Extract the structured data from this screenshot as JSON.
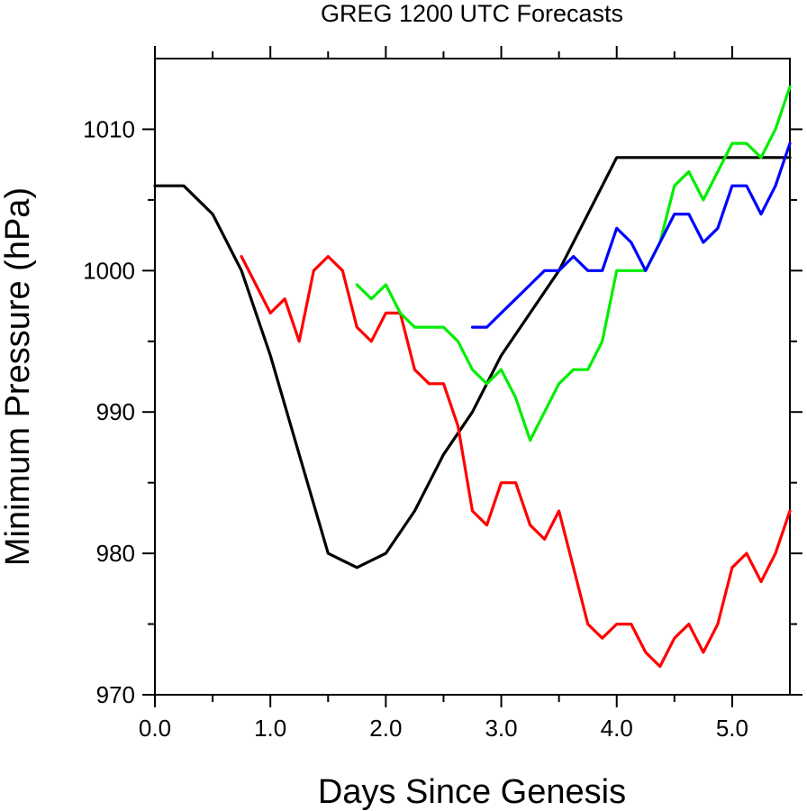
{
  "chart_data": {
    "type": "line",
    "title": "GREG 1200 UTC Forecasts",
    "xlabel": "Days Since Genesis",
    "ylabel": "Minimum Pressure (hPa)",
    "xlim": [
      0,
      5.5
    ],
    "ylim": [
      970,
      1015
    ],
    "xticks": [
      "0.0",
      "1.0",
      "2.0",
      "3.0",
      "4.0",
      "5.0"
    ],
    "yticks": [
      "970",
      "980",
      "990",
      "1000",
      "1010"
    ],
    "grid": false,
    "legend": "none",
    "series": [
      {
        "color": "#000000",
        "x": [
          0,
          0.25,
          0.5,
          0.75,
          1.0,
          1.25,
          1.5,
          1.75,
          2.0,
          2.25,
          2.5,
          2.75,
          3.0,
          3.25,
          3.5,
          3.75,
          4.0,
          4.25,
          4.5,
          4.75,
          5.0,
          5.25,
          5.5
        ],
        "y": [
          1006,
          1006,
          1004,
          1000,
          994,
          987,
          980,
          979,
          980,
          983,
          987,
          990,
          994,
          997,
          1000,
          1004,
          1008,
          1008,
          1008,
          1008,
          1008,
          1008,
          1008
        ]
      },
      {
        "color": "#ff0000",
        "x": [
          0.75,
          0.875,
          1.0,
          1.125,
          1.25,
          1.375,
          1.5,
          1.625,
          1.75,
          1.875,
          2.0,
          2.125,
          2.25,
          2.375,
          2.5,
          2.625,
          2.75,
          2.875,
          3.0,
          3.125,
          3.25,
          3.375,
          3.5,
          3.625,
          3.75,
          3.875,
          4.0,
          4.125,
          4.25,
          4.375,
          4.5,
          4.625,
          4.75,
          4.875,
          5.0,
          5.125,
          5.25,
          5.375,
          5.5
        ],
        "y": [
          1001,
          999,
          997,
          998,
          995,
          1000,
          1001,
          1000,
          996,
          995,
          997,
          997,
          993,
          992,
          992,
          989,
          983,
          982,
          985,
          985,
          982,
          981,
          983,
          979,
          975,
          974,
          975,
          975,
          973,
          972,
          974,
          975,
          973,
          975,
          979,
          980,
          978,
          980,
          983
        ]
      },
      {
        "color": "#00ee00",
        "x": [
          1.75,
          1.875,
          2.0,
          2.125,
          2.25,
          2.375,
          2.5,
          2.625,
          2.75,
          2.875,
          3.0,
          3.125,
          3.25,
          3.375,
          3.5,
          3.625,
          3.75,
          3.875,
          4.0,
          4.125,
          4.25,
          4.375,
          4.5,
          4.625,
          4.75,
          4.875,
          5.0,
          5.125,
          5.25,
          5.375,
          5.5
        ],
        "y": [
          999,
          998,
          999,
          997,
          996,
          996,
          996,
          995,
          993,
          992,
          993,
          991,
          988,
          990,
          992,
          993,
          993,
          995,
          1000,
          1000,
          1000,
          1002,
          1006,
          1007,
          1005,
          1007,
          1009,
          1009,
          1008,
          1010,
          1013
        ]
      },
      {
        "color": "#0000ff",
        "x": [
          2.75,
          2.875,
          3.0,
          3.125,
          3.25,
          3.375,
          3.5,
          3.625,
          3.75,
          3.875,
          4.0,
          4.125,
          4.25,
          4.375,
          4.5,
          4.625,
          4.75,
          4.875,
          5.0,
          5.125,
          5.25,
          5.375,
          5.5
        ],
        "y": [
          996,
          996,
          997,
          998,
          999,
          1000,
          1000,
          1001,
          1000,
          1000,
          1003,
          1002,
          1000,
          1002,
          1004,
          1004,
          1002,
          1003,
          1006,
          1006,
          1004,
          1006,
          1009
        ]
      }
    ]
  }
}
